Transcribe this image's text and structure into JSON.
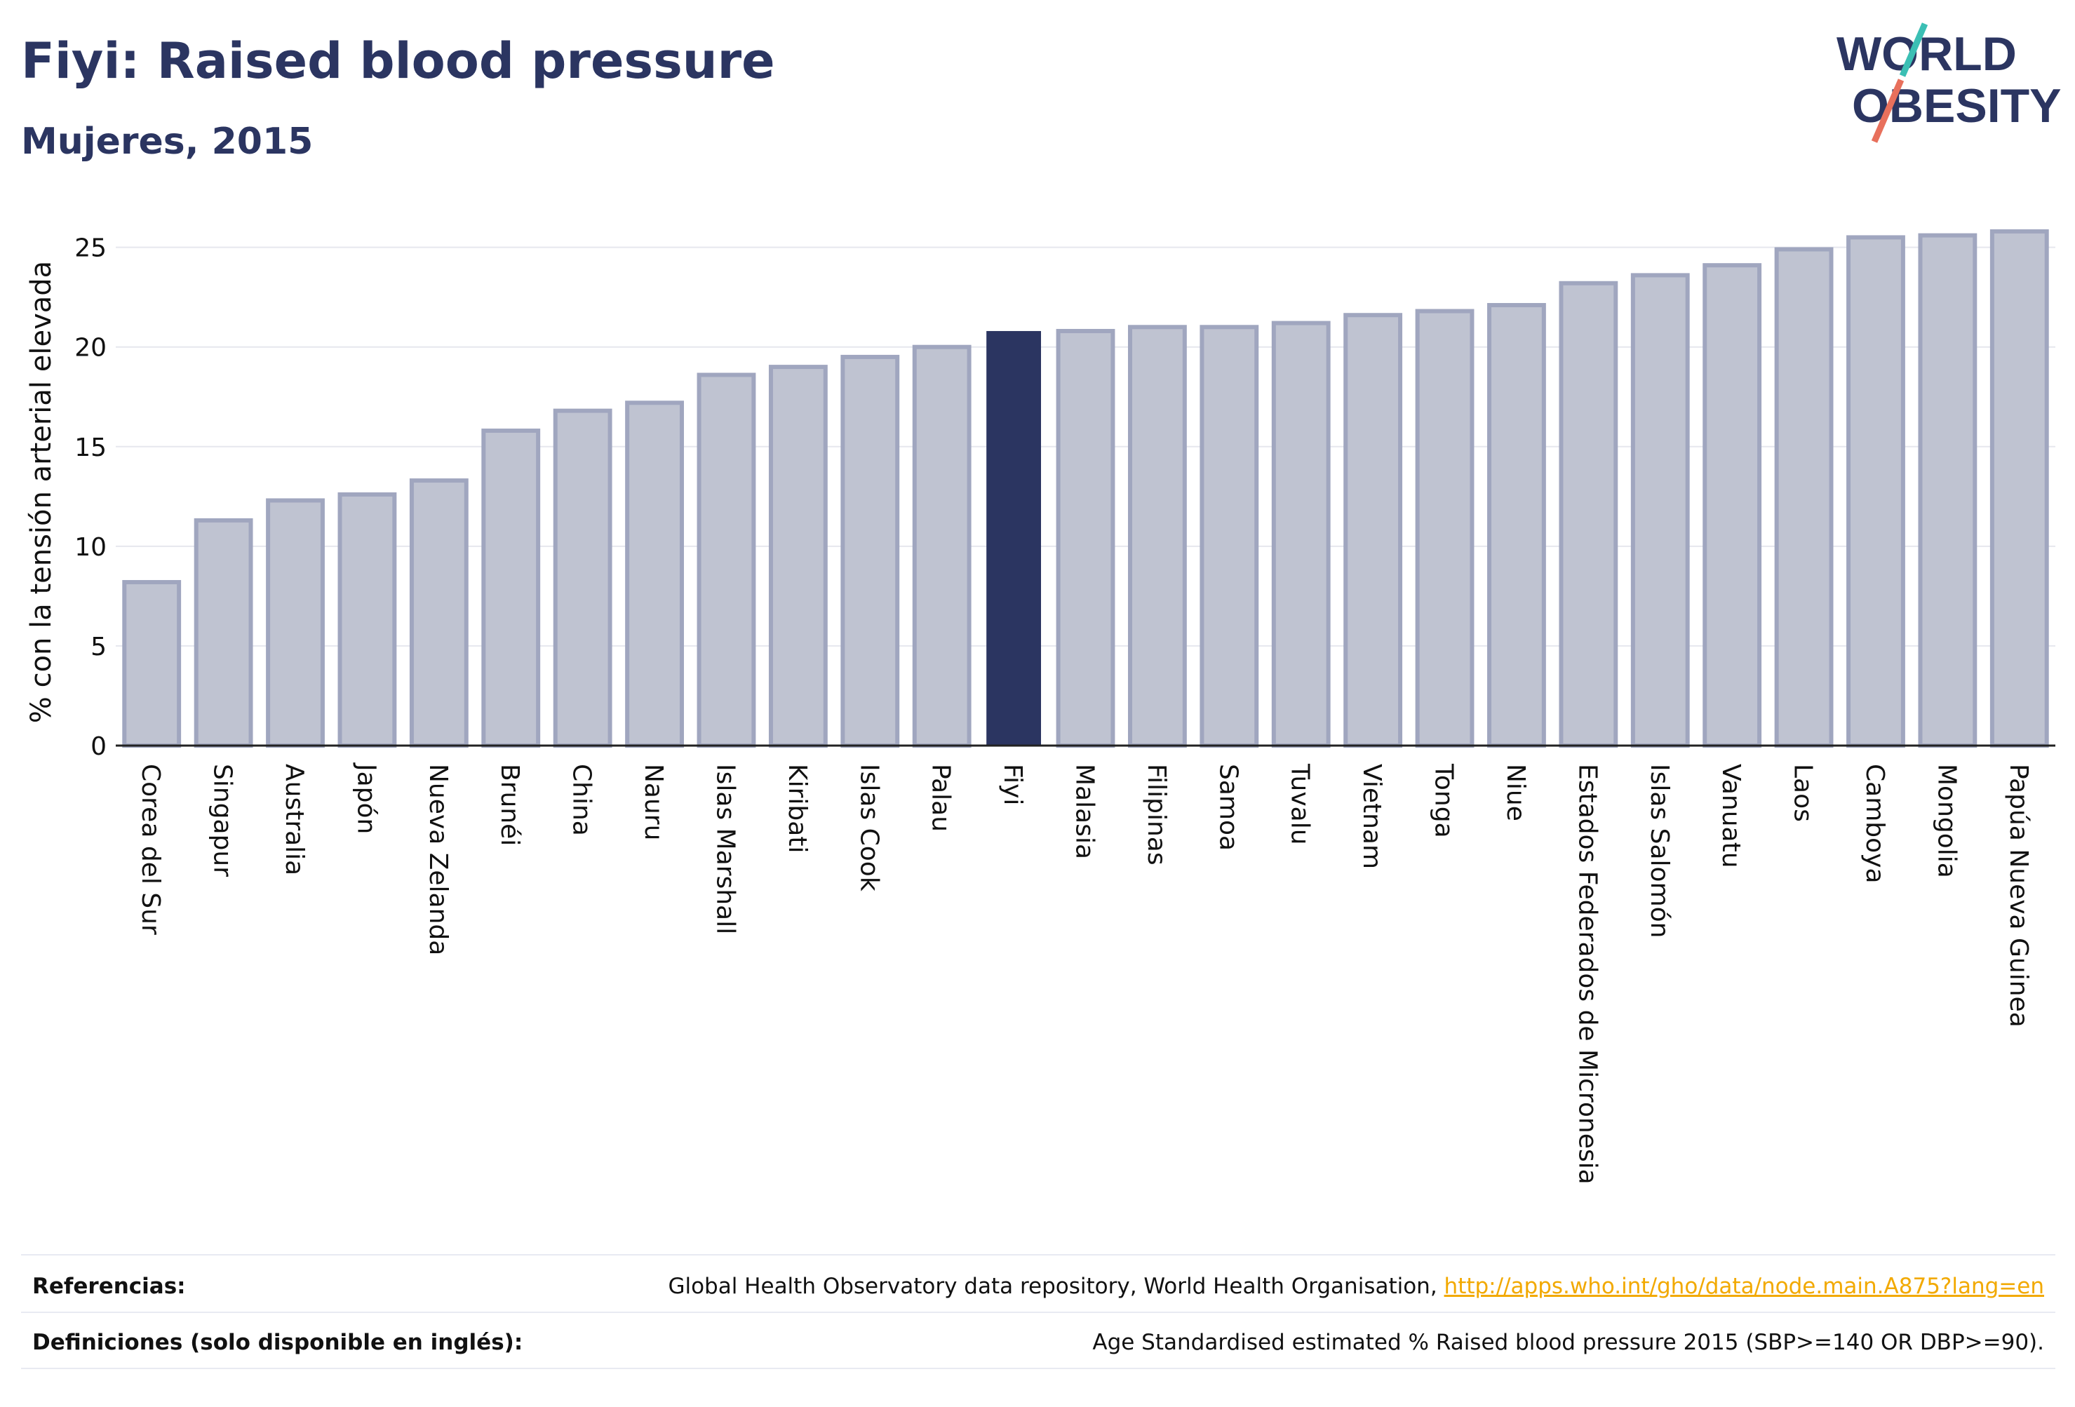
{
  "header": {
    "title": "Fiyi: Raised blood pressure",
    "subtitle": "Mujeres, 2015"
  },
  "logo": {
    "line1": "WORLD",
    "line2": "OBESITY"
  },
  "colors": {
    "highlight": "#2b3561",
    "bar_fill": "#bfc3d1",
    "bar_stroke": "#a0a6bf",
    "text": "#2b3561",
    "link": "#f2a900",
    "logo_teal": "#3bbfb4",
    "logo_coral": "#e8705c"
  },
  "chart_data": {
    "type": "bar",
    "ylabel": "% con la tensión arterial elevada",
    "ylim": [
      0,
      26.5
    ],
    "yticks": [
      0,
      5,
      10,
      15,
      20,
      25
    ],
    "highlight": "Fiyi",
    "grid": true,
    "categories": [
      "Corea del Sur",
      "Singapur",
      "Australia",
      "Japón",
      "Nueva Zelanda",
      "Brunéi",
      "China",
      "Nauru",
      "Islas Marshall",
      "Kiribati",
      "Islas Cook",
      "Palau",
      "Fiyi",
      "Malasia",
      "Filipinas",
      "Samoa",
      "Tuvalu",
      "Vietnam",
      "Tonga",
      "Niue",
      "Estados Federados de Micronesia",
      "Islas Salomón",
      "Vanuatu",
      "Laos",
      "Camboya",
      "Mongolia",
      "Papúa Nueva Guinea"
    ],
    "values": [
      8.2,
      11.3,
      12.3,
      12.6,
      13.3,
      15.8,
      16.8,
      17.2,
      18.6,
      19.0,
      19.5,
      20.0,
      20.8,
      20.8,
      21.0,
      21.0,
      21.2,
      21.6,
      21.8,
      22.1,
      23.2,
      23.6,
      24.1,
      24.9,
      25.5,
      25.6,
      25.8
    ]
  },
  "footer": {
    "references_label": "Referencias:",
    "references_text": "Global Health Observatory data repository, World Health Organisation, ",
    "references_link": "http://apps.who.int/gho/data/node.main.A875?lang=en",
    "definitions_label": "Definiciones (solo disponible en inglés):",
    "definitions_text": "Age Standardised estimated % Raised blood pressure 2015 (SBP>=140 OR DBP>=90)."
  }
}
